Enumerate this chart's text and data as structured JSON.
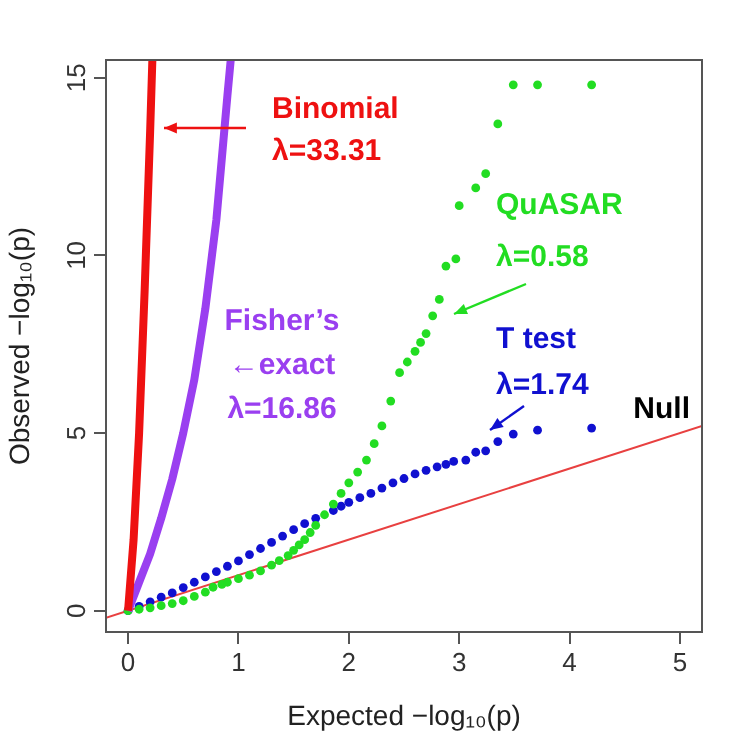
{
  "chart_data": {
    "type": "line",
    "xlabel": "Expected −log₁₀(p)",
    "ylabel": "Observed −log₁₀(p)",
    "xlim": [
      -0.2,
      5.2
    ],
    "ylim": [
      -0.6,
      15.5
    ],
    "xticks": [
      0,
      1,
      2,
      3,
      4,
      5
    ],
    "yticks": [
      0,
      5,
      10,
      15
    ],
    "grid": false,
    "legend": false,
    "series": [
      {
        "color": "#ee1111",
        "marker": "none",
        "x": [
          0,
          0.05,
          0.1,
          0.15,
          0.2,
          0.22
        ],
        "values": [
          0,
          2,
          5,
          9,
          13.5,
          15.5
        ]
      },
      {
        "color": "#9a3ff0",
        "marker": "none",
        "x": [
          0,
          0.1,
          0.2,
          0.3,
          0.4,
          0.5,
          0.6,
          0.7,
          0.8,
          0.9,
          0.93
        ],
        "values": [
          0,
          0.8,
          1.6,
          2.6,
          3.7,
          5,
          6.5,
          8.5,
          11,
          14.5,
          15.5
        ]
      },
      {
        "type": "scatter",
        "color": "#22dd22",
        "marker": "circle",
        "x": [
          0,
          0.1,
          0.2,
          0.3,
          0.4,
          0.5,
          0.6,
          0.7,
          0.77,
          0.85,
          0.9,
          1.0,
          1.1,
          1.2,
          1.3,
          1.37,
          1.45,
          1.5,
          1.55,
          1.6,
          1.65,
          1.7,
          1.78,
          1.86,
          1.93,
          2.0,
          2.08,
          2.16,
          2.23,
          2.3,
          2.38,
          2.46,
          2.53,
          2.6,
          2.65,
          2.7,
          2.76,
          2.82,
          2.88,
          2.97,
          3.0,
          3.15,
          3.24,
          3.35,
          3.49,
          3.71,
          4.2
        ],
        "values": [
          0,
          0.04,
          0.08,
          0.14,
          0.2,
          0.28,
          0.4,
          0.52,
          0.66,
          0.74,
          0.8,
          0.9,
          1.0,
          1.12,
          1.28,
          1.41,
          1.55,
          1.7,
          1.85,
          2.0,
          2.2,
          2.4,
          2.7,
          3.0,
          3.3,
          3.6,
          3.9,
          4.24,
          4.7,
          5.2,
          5.9,
          6.7,
          7.0,
          7.3,
          7.55,
          7.8,
          8.3,
          8.76,
          9.7,
          9.9,
          11.4,
          11.9,
          12.3,
          13.7,
          14.8,
          14.8,
          14.8
        ]
      },
      {
        "type": "scatter",
        "color": "#1010d0",
        "marker": "circle",
        "x": [
          0,
          0.1,
          0.2,
          0.3,
          0.4,
          0.5,
          0.6,
          0.7,
          0.8,
          0.9,
          1.0,
          1.1,
          1.2,
          1.3,
          1.4,
          1.5,
          1.6,
          1.7,
          1.86,
          1.93,
          2.0,
          2.1,
          2.2,
          2.3,
          2.4,
          2.5,
          2.6,
          2.7,
          2.8,
          2.88,
          2.95,
          3.06,
          3.15,
          3.24,
          3.35,
          3.49,
          3.71,
          4.2
        ],
        "values": [
          0,
          0.12,
          0.25,
          0.38,
          0.5,
          0.65,
          0.8,
          0.95,
          1.1,
          1.25,
          1.4,
          1.58,
          1.75,
          1.92,
          2.1,
          2.28,
          2.45,
          2.6,
          2.82,
          2.94,
          3.05,
          3.18,
          3.3,
          3.45,
          3.6,
          3.72,
          3.85,
          3.95,
          4.05,
          4.12,
          4.2,
          4.24,
          4.46,
          4.5,
          4.76,
          4.97,
          5.08,
          5.14
        ]
      },
      {
        "name": "Null",
        "color": "#e84040",
        "marker": "none",
        "x": [
          -0.2,
          5.2
        ],
        "values": [
          -0.2,
          5.2
        ]
      }
    ],
    "annotations": [
      "Binomial\nλ=33.31",
      "Fisher’s\n←exact\nλ=16.86",
      "QuASAR\nλ=0.58",
      "T test\nλ=1.74"
    ]
  }
}
